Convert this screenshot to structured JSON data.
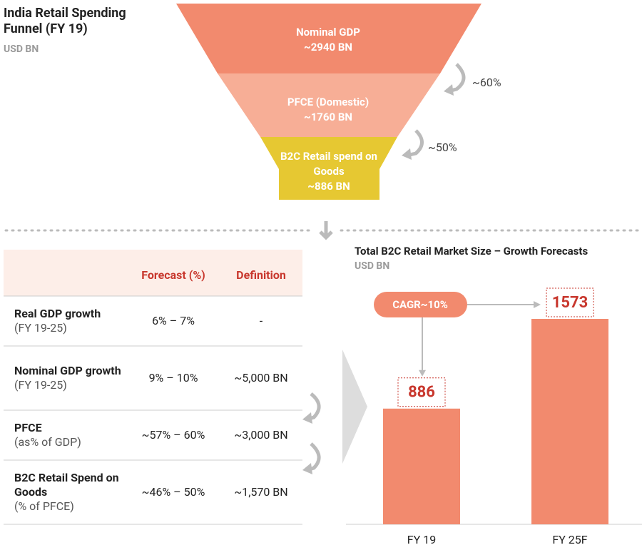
{
  "funnel": {
    "title": "India Retail Spending Funnel (FY 19)",
    "unit": "USD BN",
    "stages": [
      {
        "label": "Nominal GDP",
        "value": "~2940 BN"
      },
      {
        "label": "PFCE (Domestic)",
        "value": "~1760 BN"
      },
      {
        "label": "B2C Retail spend on Goods",
        "value": "~886 BN"
      }
    ],
    "ratios": [
      "~60%",
      "~50%"
    ]
  },
  "table": {
    "header": [
      "Forecast (%)",
      "Definition"
    ],
    "rows": [
      {
        "label": "Real GDP growth",
        "note": "(FY 19-25)",
        "forecast": "6% – 7%",
        "definition": "-"
      },
      {
        "label": "Nominal GDP growth",
        "note": "(FY 19-25)",
        "forecast": "9% – 10%",
        "definition": "~5,000 BN"
      },
      {
        "label": "PFCE",
        "note": "(as% of GDP)",
        "forecast": "~57% – 60%",
        "definition": "~3,000 BN"
      },
      {
        "label": "B2C Retail Spend on Goods",
        "note": "(% of PFCE)",
        "forecast": "~46% – 50%",
        "definition": "~1,570 BN"
      }
    ]
  },
  "chart_data": {
    "type": "bar",
    "title": "Total  B2C Retail Market Size – Growth Forecasts",
    "subtitle": "USD BN",
    "categories": [
      "FY 19",
      "FY 25F"
    ],
    "values": [
      886,
      1573
    ],
    "color": "#f28a6e",
    "annotation": "CAGR~10%"
  }
}
